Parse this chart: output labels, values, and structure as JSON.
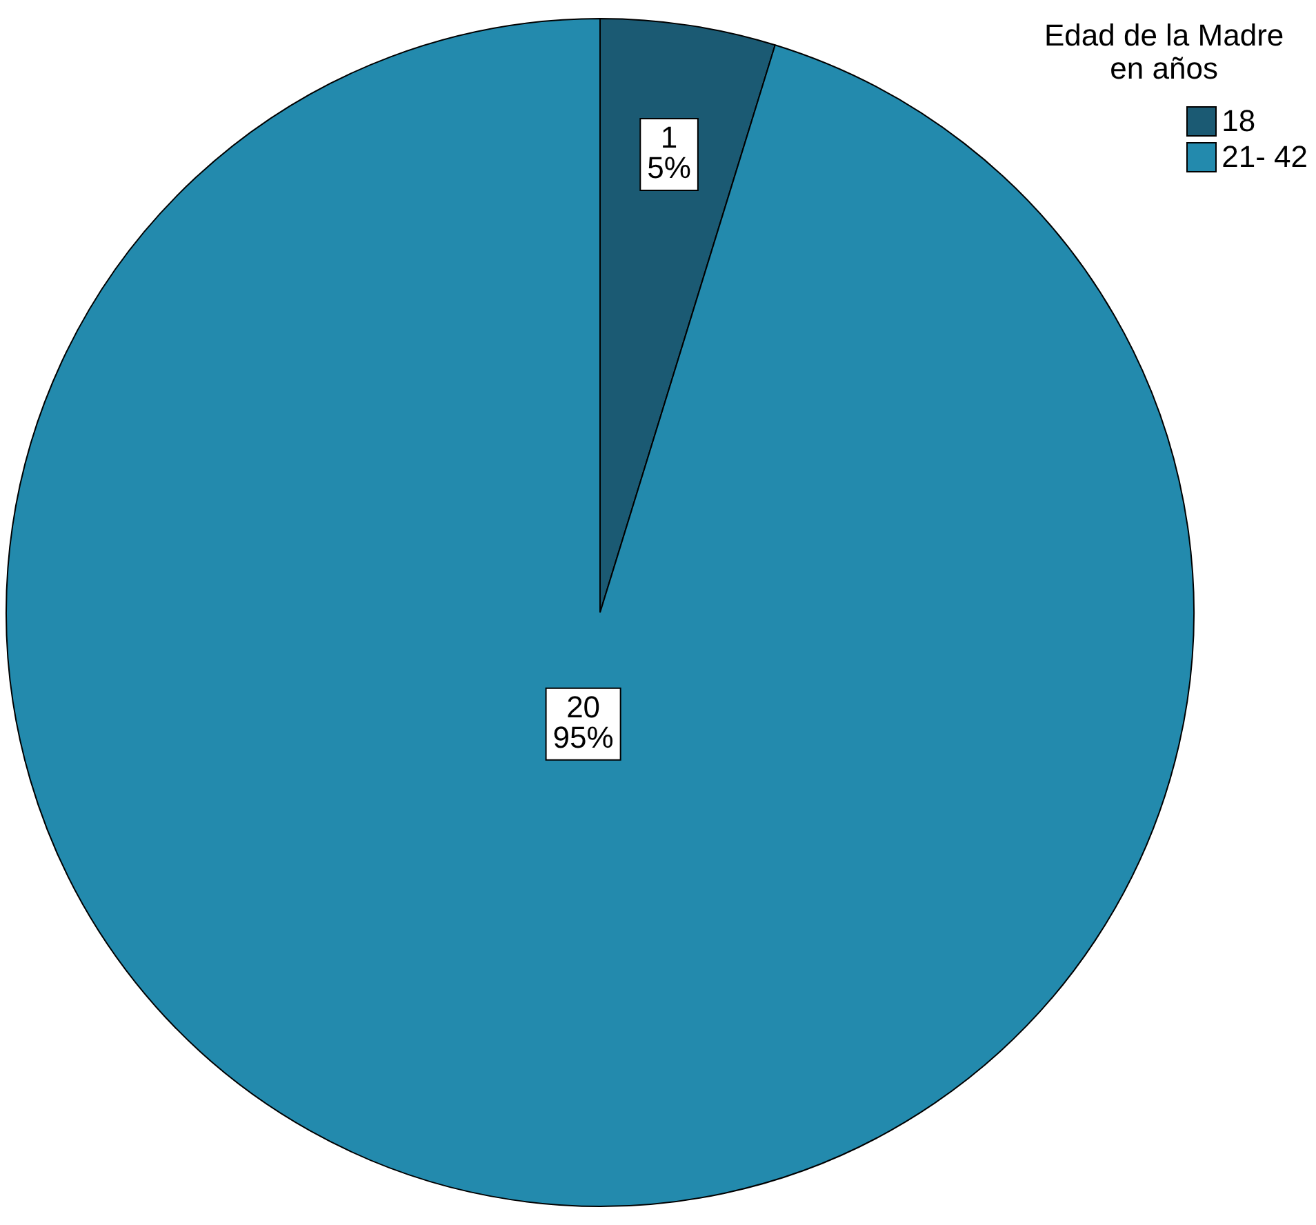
{
  "chart_data": {
    "type": "pie",
    "legend_title": "Edad de la Madre\nen años",
    "categories": [
      "18",
      "21- 42"
    ],
    "values": [
      1,
      20
    ],
    "colors": [
      "#1b5a73",
      "#238aad"
    ],
    "value_labels": [
      "1\n5%",
      "20\n95%"
    ],
    "legend": "top right"
  }
}
